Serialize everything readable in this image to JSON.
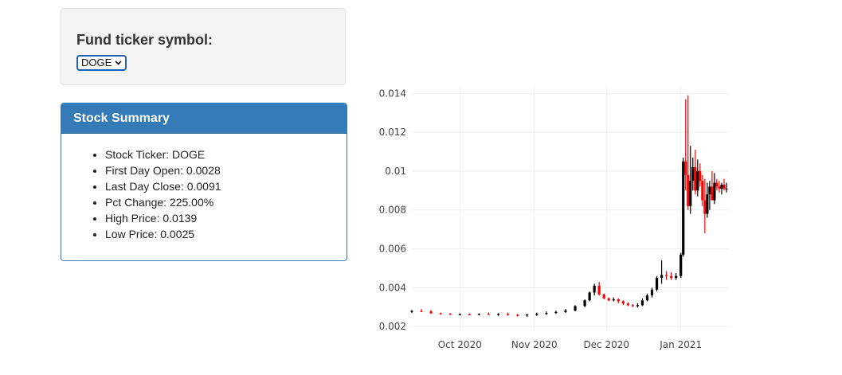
{
  "selector": {
    "label": "Fund ticker symbol:",
    "selected": "DOGE"
  },
  "summary": {
    "title": "Stock Summary",
    "items": [
      "Stock Ticker: DOGE",
      "First Day Open: 0.0028",
      "Last Day Close: 0.0091",
      "Pct Change: 225.00%",
      "High Price: 0.0139",
      "Low Price: 0.0025"
    ]
  },
  "colors": {
    "increasing": "#000000",
    "decreasing": "#ff0000",
    "panel_primary": "#337ab7"
  },
  "chart_data": {
    "type": "candlestick",
    "title": "",
    "xlabel": "",
    "ylabel": "",
    "ylim": [
      0.0018,
      0.0143
    ],
    "xlim": [
      "2020-09-11",
      "2021-01-21"
    ],
    "y_ticks": [
      "0.002",
      "0.004",
      "0.006",
      "0.008",
      "0.01",
      "0.012",
      "0.014"
    ],
    "x_ticks": [
      {
        "date": "2020-10-01",
        "label": "Oct 2020"
      },
      {
        "date": "2020-11-01",
        "label": "Nov 2020"
      },
      {
        "date": "2020-12-01",
        "label": "Dec 2020"
      },
      {
        "date": "2021-01-01",
        "label": "Jan 2021"
      }
    ],
    "grid": true,
    "series": [
      {
        "dates": [
          "2020-09-11",
          "2020-09-15",
          "2020-09-19",
          "2020-09-23",
          "2020-09-27",
          "2020-10-01",
          "2020-10-05",
          "2020-10-09",
          "2020-10-13",
          "2020-10-17",
          "2020-10-21",
          "2020-10-25",
          "2020-10-29",
          "2020-11-02",
          "2020-11-06",
          "2020-11-10",
          "2020-11-14",
          "2020-11-18",
          "2020-11-22",
          "2020-11-24",
          "2020-11-26",
          "2020-11-28",
          "2020-11-30",
          "2020-12-02",
          "2020-12-04",
          "2020-12-06",
          "2020-12-08",
          "2020-12-10",
          "2020-12-12",
          "2020-12-14",
          "2020-12-16",
          "2020-12-18",
          "2020-12-20",
          "2020-12-22",
          "2020-12-24",
          "2020-12-26",
          "2020-12-28",
          "2020-12-30",
          "2021-01-01",
          "2021-01-02",
          "2021-01-03",
          "2021-01-04",
          "2021-01-05",
          "2021-01-06",
          "2021-01-07",
          "2021-01-08",
          "2021-01-09",
          "2021-01-10",
          "2021-01-11",
          "2021-01-12",
          "2021-01-13",
          "2021-01-14",
          "2021-01-15",
          "2021-01-16",
          "2021-01-17",
          "2021-01-18",
          "2021-01-19",
          "2021-01-20"
        ],
        "open": [
          0.00275,
          0.0028,
          0.00278,
          0.00268,
          0.00265,
          0.00262,
          0.00263,
          0.00262,
          0.00265,
          0.00262,
          0.00265,
          0.0026,
          0.00258,
          0.00262,
          0.00265,
          0.0027,
          0.00275,
          0.00282,
          0.00305,
          0.00335,
          0.00375,
          0.0041,
          0.00365,
          0.00345,
          0.00335,
          0.0034,
          0.0033,
          0.00318,
          0.0031,
          0.00305,
          0.0031,
          0.00335,
          0.0036,
          0.0039,
          0.0045,
          0.00465,
          0.0046,
          0.0045,
          0.0046,
          0.0057,
          0.0105,
          0.0098,
          0.0082,
          0.0095,
          0.0102,
          0.009,
          0.01,
          0.0095,
          0.0085,
          0.0078,
          0.0088,
          0.0092,
          0.0085,
          0.0094,
          0.0092,
          0.0091,
          0.0093,
          0.0091
        ],
        "high": [
          0.00285,
          0.0029,
          0.00285,
          0.00272,
          0.0027,
          0.00268,
          0.00268,
          0.00268,
          0.00272,
          0.00268,
          0.00272,
          0.00265,
          0.00265,
          0.00272,
          0.00278,
          0.00282,
          0.0029,
          0.0031,
          0.0034,
          0.0038,
          0.0042,
          0.0043,
          0.0037,
          0.0035,
          0.0035,
          0.00345,
          0.00335,
          0.00325,
          0.00315,
          0.0032,
          0.00345,
          0.0037,
          0.004,
          0.0046,
          0.0054,
          0.00485,
          0.0048,
          0.00475,
          0.0058,
          0.0107,
          0.0137,
          0.0139,
          0.0113,
          0.0107,
          0.0111,
          0.0106,
          0.0104,
          0.0098,
          0.0096,
          0.0094,
          0.0095,
          0.01,
          0.0099,
          0.0096,
          0.0095,
          0.0094,
          0.0096,
          0.0094
        ],
        "low": [
          0.0027,
          0.00275,
          0.00265,
          0.00262,
          0.0026,
          0.00258,
          0.0026,
          0.00258,
          0.0026,
          0.00255,
          0.00255,
          0.00252,
          0.0025,
          0.00255,
          0.0026,
          0.00265,
          0.0027,
          0.00278,
          0.003,
          0.0033,
          0.0036,
          0.0036,
          0.0034,
          0.0033,
          0.0033,
          0.0032,
          0.0031,
          0.00305,
          0.003,
          0.00298,
          0.00305,
          0.0033,
          0.0035,
          0.0038,
          0.0042,
          0.0044,
          0.0044,
          0.0044,
          0.0045,
          0.0056,
          0.009,
          0.008,
          0.0078,
          0.009,
          0.0088,
          0.0087,
          0.0092,
          0.0082,
          0.0068,
          0.0076,
          0.008,
          0.0085,
          0.0083,
          0.009,
          0.0089,
          0.0088,
          0.009,
          0.0089
        ],
        "close": [
          0.0028,
          0.00278,
          0.00268,
          0.00265,
          0.00262,
          0.00263,
          0.00262,
          0.00265,
          0.00262,
          0.00265,
          0.0026,
          0.00258,
          0.00262,
          0.00265,
          0.0027,
          0.00275,
          0.00282,
          0.00305,
          0.00335,
          0.00375,
          0.0041,
          0.00365,
          0.00345,
          0.00335,
          0.0034,
          0.0033,
          0.00318,
          0.0031,
          0.00305,
          0.0031,
          0.00335,
          0.0036,
          0.0039,
          0.0045,
          0.00465,
          0.0046,
          0.0045,
          0.0046,
          0.0057,
          0.0105,
          0.0098,
          0.0082,
          0.0095,
          0.0102,
          0.009,
          0.01,
          0.0095,
          0.0085,
          0.0078,
          0.0088,
          0.0092,
          0.0085,
          0.0094,
          0.0092,
          0.0091,
          0.0093,
          0.0091,
          0.0091
        ]
      }
    ]
  }
}
